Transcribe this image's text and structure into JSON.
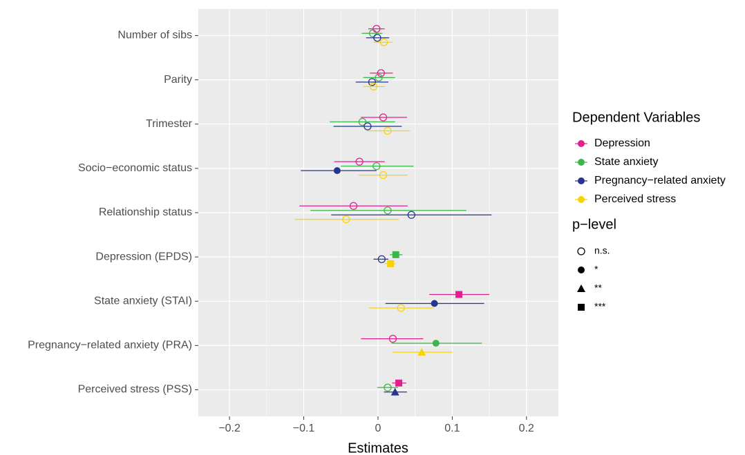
{
  "chart_data": {
    "type": "dot-whisker",
    "x_label": "Estimates",
    "categories": [
      "Number of sibs",
      "Parity",
      "Trimester",
      "Socio−economic status",
      "Relationship status",
      "Depression (EPDS)",
      "State anxiety (STAI)",
      "Pregnancy−related anxiety (PRA)",
      "Perceived stress (PSS)"
    ],
    "xlim": [
      -0.242,
      0.243
    ],
    "xticks": [
      {
        "value": -0.2,
        "label": "−0.2"
      },
      {
        "value": -0.1,
        "label": "−0.1"
      },
      0,
      0.1,
      0.2
    ],
    "grid": true,
    "legend_title": "Dependent Variables",
    "p_legend_title": "p−level",
    "p_levels": [
      "n.s.",
      "*",
      "**",
      "***"
    ],
    "series": [
      {
        "name": "Depression",
        "color": "#e0208c",
        "values": [
          -0.002,
          0.004,
          0.007,
          -0.025,
          -0.033,
          null,
          0.109,
          0.02,
          0.028
        ],
        "low": [
          -0.013,
          -0.011,
          -0.023,
          -0.059,
          -0.106,
          null,
          0.069,
          -0.023,
          0.019
        ],
        "high": [
          0.009,
          0.02,
          0.039,
          0.009,
          0.04,
          null,
          0.15,
          0.061,
          0.038
        ],
        "p": [
          "n.s.",
          "n.s.",
          "n.s.",
          "n.s.",
          "n.s.",
          null,
          "***",
          "n.s.",
          "***"
        ]
      },
      {
        "name": "State anxiety",
        "color": "#3cb54a",
        "values": [
          -0.007,
          0.001,
          -0.021,
          -0.002,
          0.013,
          0.024,
          null,
          0.078,
          0.013
        ],
        "low": [
          -0.022,
          -0.02,
          -0.065,
          -0.05,
          -0.091,
          0.016,
          null,
          0.018,
          -0.001
        ],
        "high": [
          0.006,
          0.023,
          0.023,
          0.048,
          0.119,
          0.033,
          null,
          0.14,
          0.027
        ],
        "p": [
          "n.s.",
          "n.s.",
          "n.s.",
          "n.s.",
          "n.s.",
          "***",
          null,
          "*",
          "n.s."
        ]
      },
      {
        "name": "Pregnancy−related anxiety",
        "color": "#26368f",
        "values": [
          -0.001,
          -0.008,
          -0.014,
          -0.055,
          0.045,
          0.005,
          0.076,
          null,
          0.023
        ],
        "low": [
          -0.016,
          -0.03,
          -0.06,
          -0.104,
          -0.063,
          -0.006,
          0.01,
          null,
          0.008
        ],
        "high": [
          0.015,
          0.014,
          0.032,
          -0.002,
          0.153,
          0.014,
          0.143,
          null,
          0.039
        ],
        "p": [
          "n.s.",
          "n.s.",
          "n.s.",
          "*",
          "n.s.",
          "n.s.",
          "*",
          null,
          "**"
        ]
      },
      {
        "name": "Perceived stress",
        "color": "#f7d400",
        "values": [
          0.008,
          -0.006,
          0.013,
          0.007,
          -0.043,
          0.017,
          0.031,
          0.059,
          null
        ],
        "low": [
          -0.006,
          -0.02,
          -0.015,
          -0.026,
          -0.112,
          0.009,
          -0.012,
          0.02,
          null
        ],
        "high": [
          0.02,
          0.009,
          0.043,
          0.04,
          0.028,
          0.024,
          0.075,
          0.1,
          null
        ],
        "p": [
          "n.s.",
          "n.s.",
          "n.s.",
          "n.s.",
          "n.s.",
          "***",
          "n.s.",
          "**",
          null
        ]
      }
    ]
  }
}
